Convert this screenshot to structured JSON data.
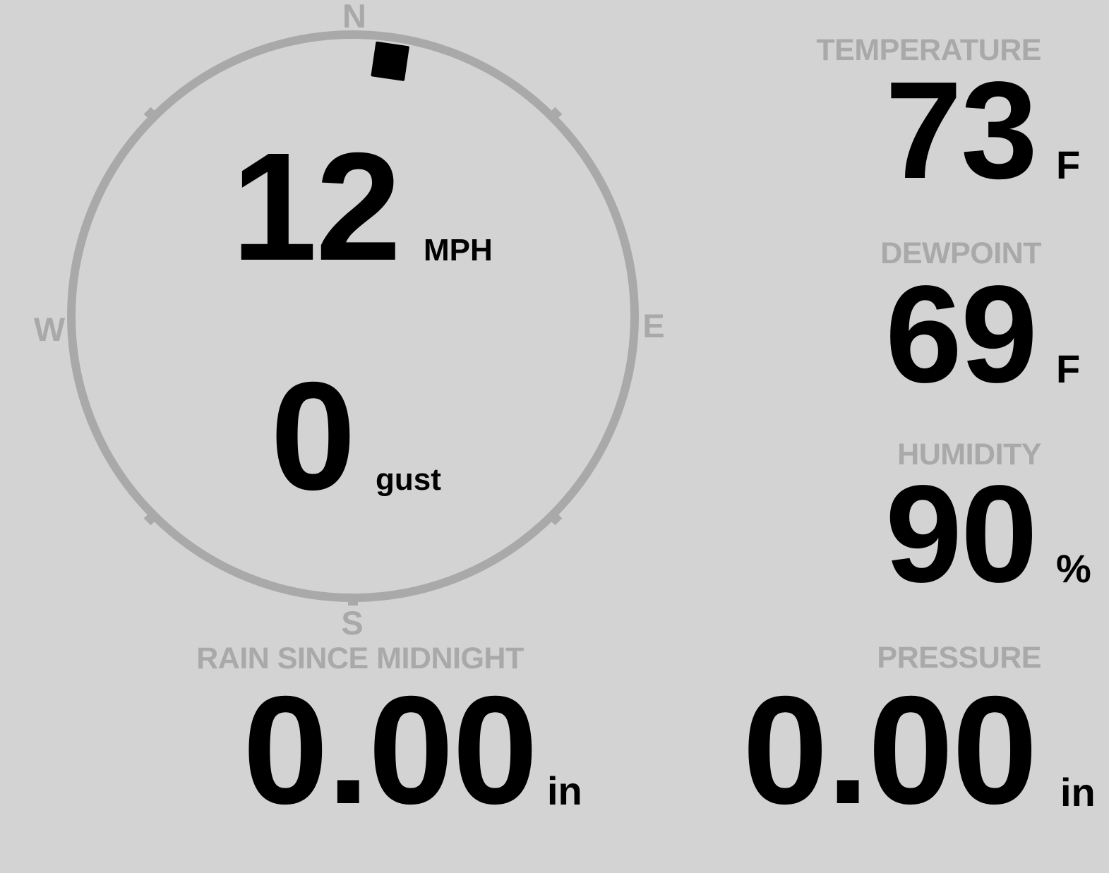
{
  "colors": {
    "background": "#d3d3d3",
    "muted": "#a9a9a9",
    "ink": "#000000"
  },
  "compass": {
    "cardinals": {
      "north": "N",
      "east": "E",
      "south": "S",
      "west": "W"
    },
    "wind_speed": {
      "value": "12",
      "unit": "MPH"
    },
    "wind_gust": {
      "value": "0",
      "unit": "gust"
    },
    "wind_direction_deg": 8.3
  },
  "gauges": {
    "temperature": {
      "label": "TEMPERATURE",
      "value": "73",
      "unit": "F"
    },
    "dewpoint": {
      "label": "DEWPOINT",
      "value": "69",
      "unit": "F"
    },
    "humidity": {
      "label": "HUMIDITY",
      "value": "90",
      "unit": "%"
    },
    "pressure": {
      "label": "PRESSURE",
      "value": "0.00",
      "unit": "in"
    },
    "rain": {
      "label": "RAIN SINCE MIDNIGHT",
      "value": "0.00",
      "unit": "in"
    }
  }
}
